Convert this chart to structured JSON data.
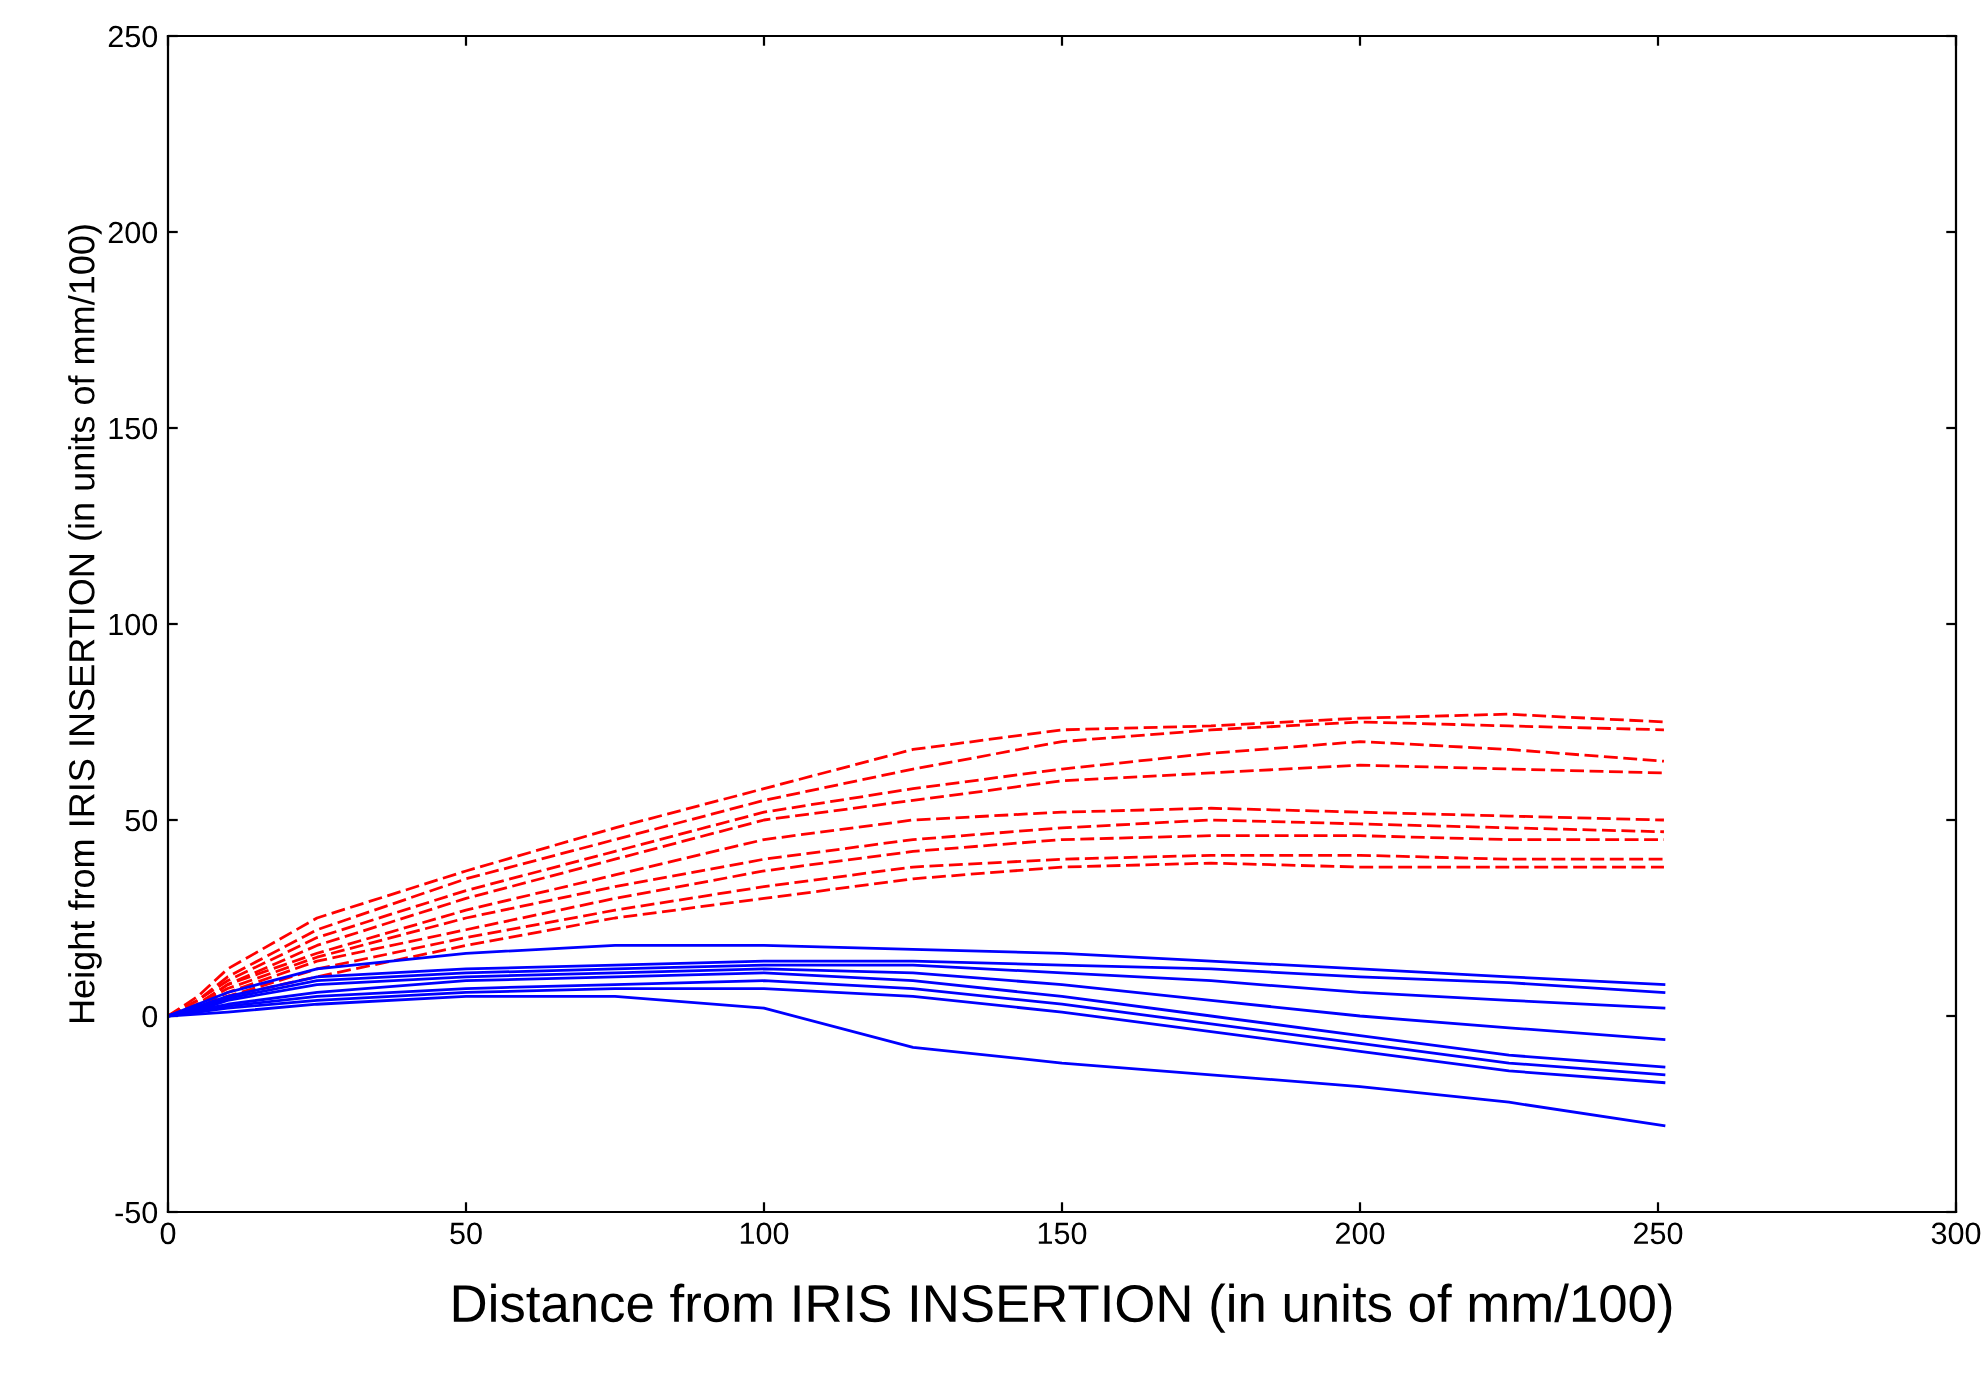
{
  "chart_data": {
    "type": "line",
    "xlabel": "Distance from IRIS INSERTION (in units of mm/100)",
    "ylabel": "Height from IRIS INSERTION (in units of mm/100)",
    "x": [
      0,
      5,
      10,
      25,
      50,
      75,
      100,
      125,
      150,
      175,
      200,
      225,
      251
    ],
    "xlim": [
      0,
      300
    ],
    "xticks": [
      0,
      50,
      100,
      150,
      200,
      250,
      300
    ],
    "ylim": [
      -50,
      250
    ],
    "yticks": [
      -50,
      0,
      50,
      100,
      150,
      200,
      250
    ],
    "grid": false,
    "legend": false,
    "marker": "none",
    "series": [
      {
        "color": "#ff0000",
        "line_style": "dashed",
        "values": [
          0,
          5,
          12,
          25,
          37,
          48,
          58,
          68,
          73,
          74,
          76,
          77,
          75
        ]
      },
      {
        "color": "#ff0000",
        "line_style": "dashed",
        "values": [
          0,
          4,
          10,
          22,
          35,
          45,
          55,
          63,
          70,
          73,
          75,
          74,
          73
        ]
      },
      {
        "color": "#ff0000",
        "line_style": "dashed",
        "values": [
          0,
          4,
          9,
          20,
          32,
          42,
          52,
          58,
          63,
          67,
          70,
          68,
          65
        ]
      },
      {
        "color": "#ff0000",
        "line_style": "dashed",
        "values": [
          0,
          3,
          8,
          18,
          30,
          40,
          50,
          55,
          60,
          62,
          64,
          63,
          62
        ]
      },
      {
        "color": "#ff0000",
        "line_style": "dashed",
        "values": [
          0,
          3,
          8,
          16,
          27,
          36,
          45,
          50,
          52,
          53,
          52,
          51,
          50
        ]
      },
      {
        "color": "#ff0000",
        "line_style": "dashed",
        "values": [
          0,
          3,
          7,
          15,
          25,
          33,
          40,
          45,
          48,
          50,
          49,
          48,
          47
        ]
      },
      {
        "color": "#ff0000",
        "line_style": "dashed",
        "values": [
          0,
          2,
          6,
          14,
          22,
          30,
          37,
          42,
          45,
          46,
          46,
          45,
          45
        ]
      },
      {
        "color": "#ff0000",
        "line_style": "dashed",
        "values": [
          0,
          2,
          5,
          12,
          20,
          27,
          33,
          38,
          40,
          41,
          41,
          40,
          40
        ]
      },
      {
        "color": "#ff0000",
        "line_style": "dashed",
        "values": [
          0,
          2,
          5,
          10,
          18,
          25,
          30,
          35,
          38,
          39,
          38,
          38,
          38
        ]
      },
      {
        "color": "#0000ff",
        "line_style": "solid",
        "values": [
          0,
          3,
          6,
          12,
          16,
          18,
          18,
          17,
          16,
          14,
          12,
          10,
          8
        ]
      },
      {
        "color": "#0000ff",
        "line_style": "solid",
        "values": [
          0,
          2.5,
          5,
          10,
          12,
          13,
          14,
          14,
          13,
          12,
          10,
          8.5,
          6
        ]
      },
      {
        "color": "#0000ff",
        "line_style": "solid",
        "values": [
          0,
          2,
          4.5,
          9,
          11,
          12,
          13,
          13,
          11,
          9,
          6,
          4,
          2
        ]
      },
      {
        "color": "#0000ff",
        "line_style": "solid",
        "values": [
          0,
          1.5,
          4,
          8,
          10,
          11,
          12,
          11,
          8,
          4,
          0,
          -3,
          -6
        ]
      },
      {
        "color": "#0000ff",
        "line_style": "solid",
        "values": [
          0,
          1.5,
          3,
          6,
          9,
          10,
          11,
          9,
          5,
          0,
          -5,
          -10,
          -13
        ]
      },
      {
        "color": "#0000ff",
        "line_style": "solid",
        "values": [
          0,
          1,
          2.5,
          5,
          7,
          8,
          9,
          7,
          3,
          -2,
          -7,
          -12,
          -15
        ]
      },
      {
        "color": "#0000ff",
        "line_style": "solid",
        "values": [
          0,
          1,
          2,
          4,
          6,
          7,
          7,
          5,
          1,
          -4,
          -9,
          -14,
          -17
        ]
      },
      {
        "color": "#0000ff",
        "line_style": "solid",
        "values": [
          0,
          0.5,
          1,
          3,
          5,
          5,
          2,
          -8,
          -12,
          -15,
          -18,
          -22,
          -28
        ]
      }
    ]
  }
}
